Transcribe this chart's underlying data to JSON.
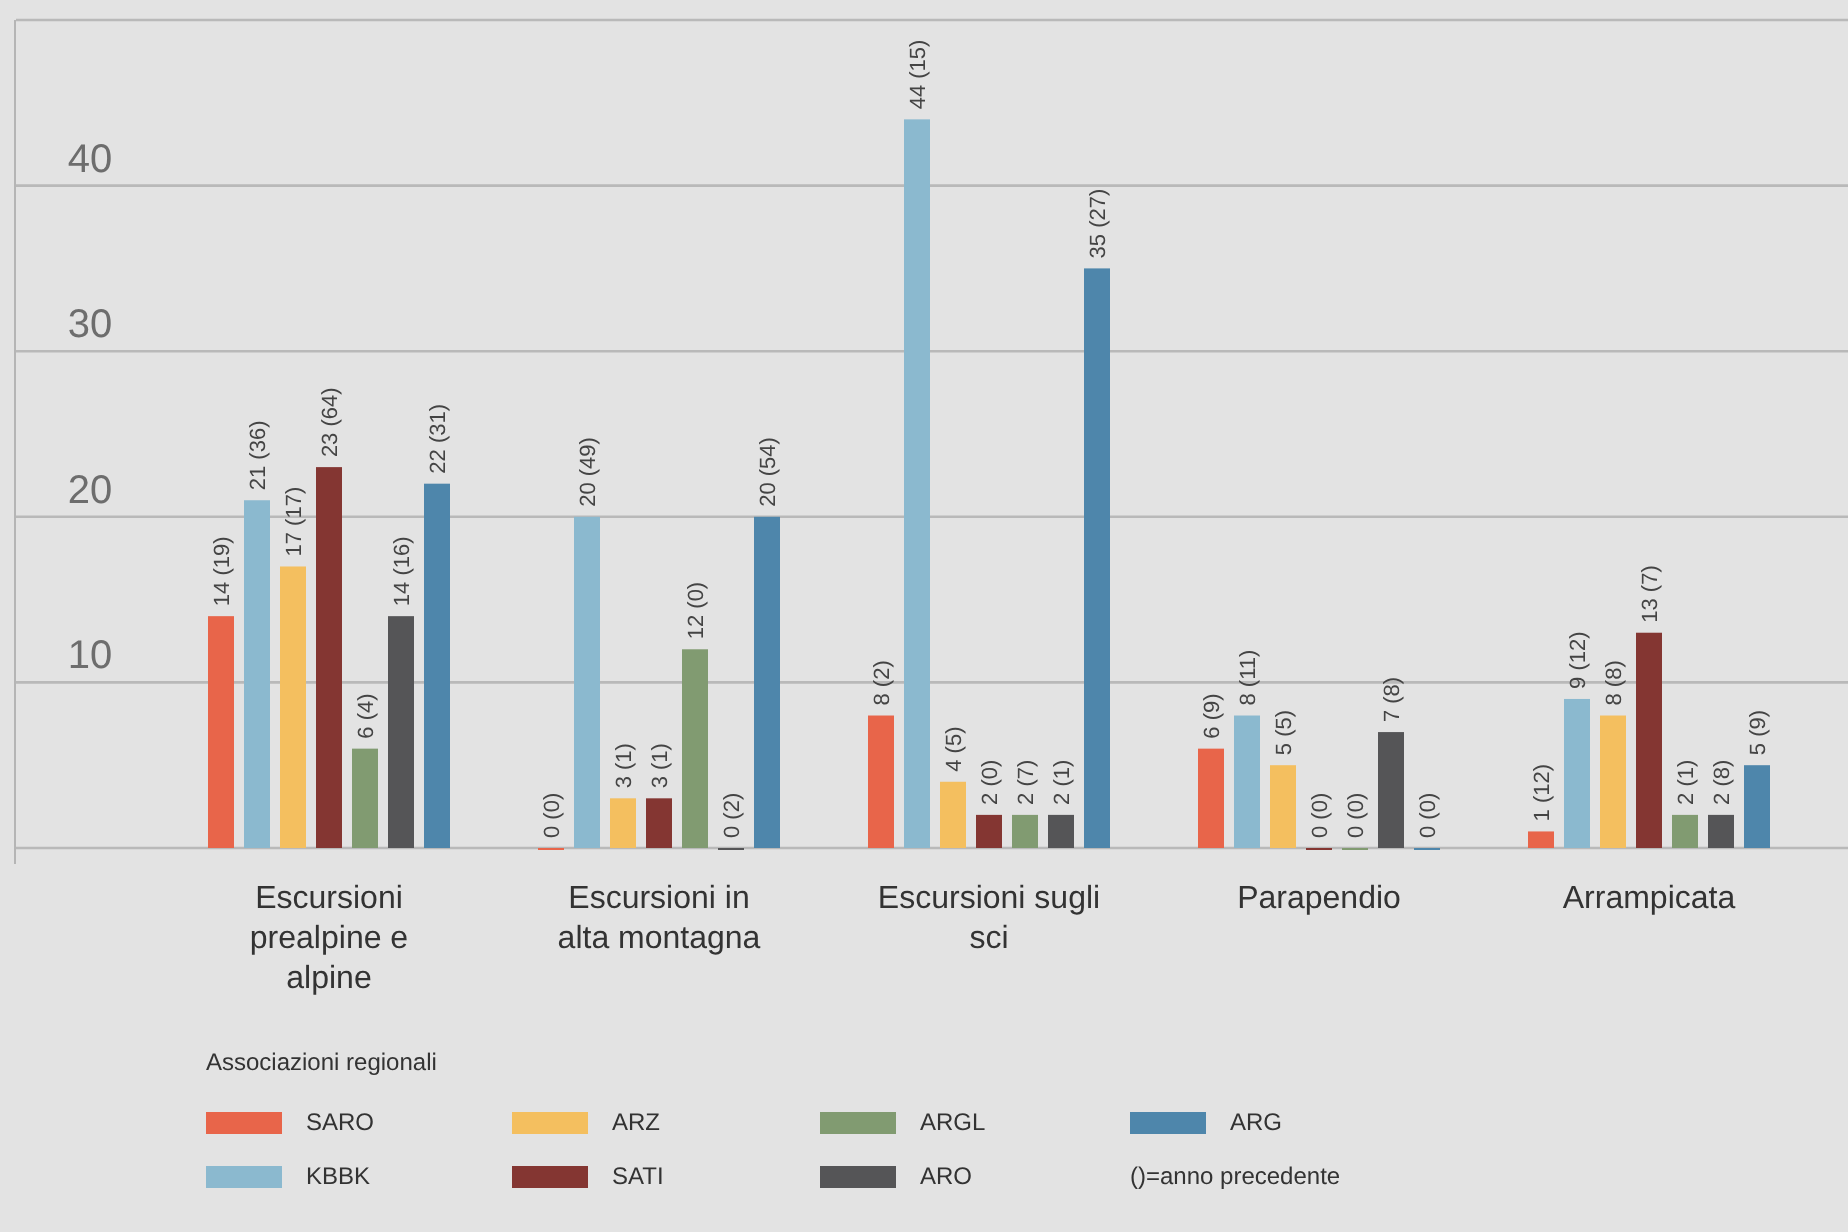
{
  "chart_data": {
    "type": "bar",
    "categories": [
      "Escursioni prealpine e alpine",
      "Escursioni in alta montagna",
      "Escursioni sugli sci",
      "Parapendio",
      "Arrampicata"
    ],
    "series": [
      {
        "name": "SARO",
        "color": "#e8654a",
        "values": [
          14,
          0,
          8,
          6,
          1
        ],
        "value_labels": [
          "14 (19)",
          "0 (0)",
          "8 (2)",
          "6 (9)",
          "1 (12)"
        ]
      },
      {
        "name": "KBBK",
        "color": "#8bb9cf",
        "values": [
          21,
          20,
          44,
          8,
          9
        ],
        "value_labels": [
          "21 (36)",
          "20 (49)",
          "44 (15)",
          "8 (11)",
          "9 (12)"
        ]
      },
      {
        "name": "ARZ",
        "color": "#f4bf5f",
        "values": [
          17,
          3,
          4,
          5,
          8
        ],
        "value_labels": [
          "17 (17)",
          "3 (1)",
          "4 (5)",
          "5 (5)",
          "8 (8)"
        ]
      },
      {
        "name": "SATI",
        "color": "#843632",
        "values": [
          23,
          3,
          2,
          0,
          13
        ],
        "value_labels": [
          "23 (64)",
          "3 (1)",
          "2 (0)",
          "0 (0)",
          "13 (7)"
        ]
      },
      {
        "name": "ARGL",
        "color": "#819b71",
        "values": [
          6,
          12,
          2,
          0,
          2
        ],
        "value_labels": [
          "6 (4)",
          "12 (0)",
          "2 (7)",
          "0 (0)",
          "2 (1)"
        ]
      },
      {
        "name": "ARO",
        "color": "#555557",
        "values": [
          14,
          0,
          2,
          7,
          2
        ],
        "value_labels": [
          "14 (16)",
          "0 (2)",
          "2 (1)",
          "7 (8)",
          "2 (8)"
        ]
      },
      {
        "name": "ARG",
        "color": "#4e86ab",
        "values": [
          22,
          20,
          35,
          0,
          5
        ],
        "value_labels": [
          "22 (31)",
          "20 (54)",
          "35 (27)",
          "0 (0)",
          "5 (9)"
        ]
      }
    ],
    "ylim": [
      0,
      50
    ],
    "yticks": [
      {
        "value": 0,
        "label": null
      },
      10,
      20,
      30,
      40,
      {
        "value": 50,
        "label": null
      }
    ],
    "grid": "y",
    "legend": "bottom",
    "legend_title": "Associazioni regionali",
    "annotations": [
      "()=anno precedente"
    ]
  }
}
